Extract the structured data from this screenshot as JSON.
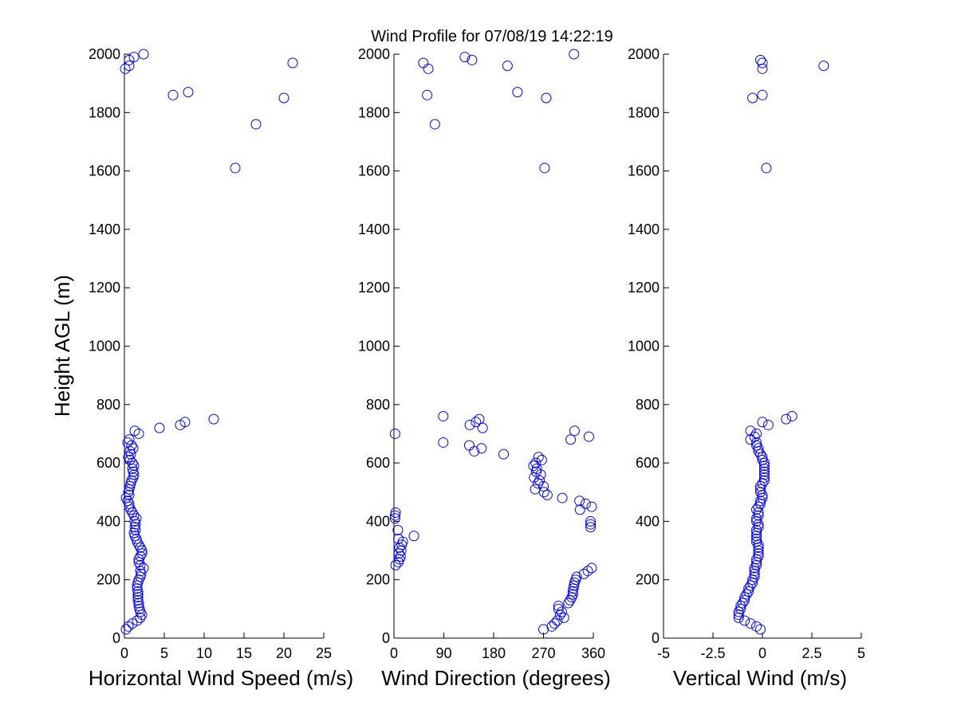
{
  "title": "Wind Profile for  07/08/19 14:22:19",
  "ylabel": "Height AGL (m)",
  "colors": {
    "marker": "#0000ff",
    "axis": "#000000"
  },
  "chart_data": [
    {
      "type": "scatter",
      "id": "speed",
      "xlabel": "Horizontal Wind Speed (m/s)",
      "ylabel": "Height AGL (m)",
      "xlim": [
        0,
        25
      ],
      "ylim": [
        0,
        2000
      ],
      "xticks": [
        0,
        5,
        10,
        15,
        20,
        25
      ],
      "xtick_labels": [
        "0",
        "5",
        "10",
        "15",
        "20",
        "25"
      ],
      "yticks": [
        0,
        200,
        400,
        600,
        800,
        1000,
        1200,
        1400,
        1600,
        1800,
        2000
      ],
      "ytick_labels": [
        "0",
        "200",
        "400",
        "600",
        "800",
        "1000",
        "1200",
        "1400",
        "1600",
        "1800",
        "2000"
      ],
      "marker": "open-circle",
      "points": [
        [
          0.2,
          30
        ],
        [
          0.5,
          40
        ],
        [
          1.0,
          50
        ],
        [
          1.6,
          60
        ],
        [
          2.0,
          70
        ],
        [
          2.2,
          80
        ],
        [
          2.0,
          90
        ],
        [
          1.9,
          100
        ],
        [
          1.8,
          110
        ],
        [
          1.8,
          120
        ],
        [
          1.7,
          130
        ],
        [
          1.7,
          140
        ],
        [
          1.7,
          150
        ],
        [
          1.7,
          160
        ],
        [
          1.6,
          170
        ],
        [
          1.6,
          180
        ],
        [
          1.7,
          190
        ],
        [
          1.8,
          200
        ],
        [
          2.0,
          210
        ],
        [
          2.1,
          220
        ],
        [
          2.0,
          230
        ],
        [
          2.4,
          240
        ],
        [
          2.0,
          250
        ],
        [
          1.8,
          260
        ],
        [
          1.8,
          270
        ],
        [
          2.0,
          280
        ],
        [
          2.2,
          290
        ],
        [
          2.2,
          300
        ],
        [
          2.0,
          310
        ],
        [
          1.8,
          320
        ],
        [
          1.6,
          330
        ],
        [
          1.5,
          340
        ],
        [
          1.3,
          350
        ],
        [
          1.2,
          360
        ],
        [
          1.4,
          370
        ],
        [
          1.3,
          380
        ],
        [
          1.4,
          390
        ],
        [
          1.3,
          400
        ],
        [
          1.5,
          410
        ],
        [
          1.2,
          420
        ],
        [
          1.0,
          430
        ],
        [
          0.8,
          440
        ],
        [
          0.6,
          450
        ],
        [
          0.6,
          460
        ],
        [
          0.4,
          470
        ],
        [
          0.2,
          480
        ],
        [
          0.6,
          490
        ],
        [
          0.5,
          500
        ],
        [
          0.6,
          510
        ],
        [
          0.7,
          520
        ],
        [
          0.8,
          530
        ],
        [
          0.9,
          540
        ],
        [
          1.1,
          550
        ],
        [
          1.2,
          560
        ],
        [
          1.1,
          570
        ],
        [
          1.0,
          580
        ],
        [
          1.2,
          590
        ],
        [
          1.0,
          600
        ],
        [
          0.7,
          610
        ],
        [
          0.5,
          620
        ],
        [
          0.8,
          630
        ],
        [
          0.7,
          640
        ],
        [
          1.1,
          650
        ],
        [
          0.9,
          660
        ],
        [
          0.4,
          670
        ],
        [
          0.6,
          680
        ],
        [
          1.8,
          700
        ],
        [
          1.3,
          710
        ],
        [
          4.4,
          720
        ],
        [
          7.0,
          730
        ],
        [
          7.6,
          740
        ],
        [
          11.2,
          750
        ],
        [
          13.9,
          1610
        ],
        [
          16.5,
          1760
        ],
        [
          20.0,
          1850
        ],
        [
          6.1,
          1860
        ],
        [
          8.0,
          1870
        ],
        [
          0.1,
          1950
        ],
        [
          0.6,
          1960
        ],
        [
          21.1,
          1970
        ],
        [
          0.6,
          1980
        ],
        [
          1.2,
          1990
        ],
        [
          2.4,
          2000
        ]
      ]
    },
    {
      "type": "scatter",
      "id": "direction",
      "xlabel": "Wind Direction (degrees)",
      "xlim": [
        0,
        360
      ],
      "ylim": [
        0,
        2000
      ],
      "xticks": [
        0,
        90,
        180,
        270,
        360
      ],
      "xtick_labels": [
        "0",
        "90",
        "180",
        "270",
        "360"
      ],
      "yticks": [
        0,
        200,
        400,
        600,
        800,
        1000,
        1200,
        1400,
        1600,
        1800,
        2000
      ],
      "ytick_labels": [
        "0",
        "200",
        "400",
        "600",
        "800",
        "1000",
        "1200",
        "1400",
        "1600",
        "1800",
        "2000"
      ],
      "marker": "open-circle",
      "points": [
        [
          270,
          30
        ],
        [
          285,
          40
        ],
        [
          290,
          50
        ],
        [
          295,
          60
        ],
        [
          307,
          70
        ],
        [
          300,
          80
        ],
        [
          303,
          90
        ],
        [
          297,
          100
        ],
        [
          297,
          110
        ],
        [
          315,
          120
        ],
        [
          318,
          130
        ],
        [
          321,
          140
        ],
        [
          323,
          150
        ],
        [
          323,
          160
        ],
        [
          324,
          170
        ],
        [
          325,
          180
        ],
        [
          326,
          190
        ],
        [
          328,
          200
        ],
        [
          330,
          210
        ],
        [
          343,
          220
        ],
        [
          350,
          230
        ],
        [
          357,
          240
        ],
        [
          3,
          250
        ],
        [
          8,
          260
        ],
        [
          10,
          270
        ],
        [
          12,
          280
        ],
        [
          9,
          290
        ],
        [
          13,
          300
        ],
        [
          10,
          310
        ],
        [
          14,
          320
        ],
        [
          16,
          330
        ],
        [
          8,
          340
        ],
        [
          36,
          350
        ],
        [
          7,
          370
        ],
        [
          355,
          380
        ],
        [
          355,
          390
        ],
        [
          355,
          400
        ],
        [
          2,
          410
        ],
        [
          2,
          420
        ],
        [
          3,
          430
        ],
        [
          336,
          440
        ],
        [
          357,
          450
        ],
        [
          346,
          460
        ],
        [
          335,
          470
        ],
        [
          304,
          480
        ],
        [
          277,
          490
        ],
        [
          271,
          500
        ],
        [
          255,
          510
        ],
        [
          270,
          520
        ],
        [
          260,
          530
        ],
        [
          263,
          540
        ],
        [
          253,
          550
        ],
        [
          265,
          560
        ],
        [
          257,
          570
        ],
        [
          258,
          580
        ],
        [
          252,
          590
        ],
        [
          256,
          600
        ],
        [
          267,
          610
        ],
        [
          261,
          620
        ],
        [
          198,
          630
        ],
        [
          145,
          640
        ],
        [
          158,
          650
        ],
        [
          136,
          660
        ],
        [
          89,
          670
        ],
        [
          319,
          680
        ],
        [
          352,
          690
        ],
        [
          2,
          700
        ],
        [
          326,
          710
        ],
        [
          160,
          720
        ],
        [
          137,
          730
        ],
        [
          148,
          740
        ],
        [
          154,
          750
        ],
        [
          89,
          760
        ],
        [
          272,
          1610
        ],
        [
          74,
          1760
        ],
        [
          275,
          1850
        ],
        [
          60,
          1860
        ],
        [
          223,
          1870
        ],
        [
          62,
          1950
        ],
        [
          205,
          1960
        ],
        [
          53,
          1970
        ],
        [
          141,
          1980
        ],
        [
          128,
          1990
        ],
        [
          325,
          2000
        ]
      ]
    },
    {
      "type": "scatter",
      "id": "vertical",
      "xlabel": "Vertical Wind (m/s)",
      "xlim": [
        -5,
        5
      ],
      "ylim": [
        0,
        2000
      ],
      "xticks": [
        -5,
        -2.5,
        0,
        2.5,
        5
      ],
      "xtick_labels": [
        "-5",
        "-2.5",
        "0",
        "2.5",
        "5"
      ],
      "yticks": [
        0,
        200,
        400,
        600,
        800,
        1000,
        1200,
        1400,
        1600,
        1800,
        2000
      ],
      "ytick_labels": [
        "0",
        "200",
        "400",
        "600",
        "800",
        "1000",
        "1200",
        "1400",
        "1600",
        "1800",
        "2000"
      ],
      "marker": "open-circle",
      "points": [
        [
          -0.1,
          30
        ],
        [
          -0.3,
          40
        ],
        [
          -0.6,
          50
        ],
        [
          -0.9,
          60
        ],
        [
          -1.2,
          70
        ],
        [
          -1.2,
          80
        ],
        [
          -1.2,
          90
        ],
        [
          -1.1,
          100
        ],
        [
          -1.1,
          110
        ],
        [
          -1.0,
          120
        ],
        [
          -0.9,
          130
        ],
        [
          -0.9,
          140
        ],
        [
          -0.8,
          150
        ],
        [
          -0.7,
          160
        ],
        [
          -0.7,
          170
        ],
        [
          -0.6,
          180
        ],
        [
          -0.5,
          190
        ],
        [
          -0.5,
          200
        ],
        [
          -0.4,
          210
        ],
        [
          -0.4,
          220
        ],
        [
          -0.4,
          230
        ],
        [
          -0.4,
          240
        ],
        [
          -0.3,
          250
        ],
        [
          -0.3,
          260
        ],
        [
          -0.3,
          270
        ],
        [
          -0.2,
          280
        ],
        [
          -0.2,
          290
        ],
        [
          -0.2,
          300
        ],
        [
          -0.2,
          310
        ],
        [
          -0.2,
          320
        ],
        [
          -0.3,
          330
        ],
        [
          -0.3,
          340
        ],
        [
          -0.3,
          350
        ],
        [
          -0.3,
          360
        ],
        [
          -0.3,
          370
        ],
        [
          -0.2,
          380
        ],
        [
          -0.2,
          390
        ],
        [
          -0.3,
          400
        ],
        [
          -0.3,
          410
        ],
        [
          -0.2,
          420
        ],
        [
          -0.2,
          430
        ],
        [
          -0.3,
          440
        ],
        [
          -0.2,
          450
        ],
        [
          -0.1,
          460
        ],
        [
          -0.1,
          470
        ],
        [
          0.0,
          480
        ],
        [
          0.0,
          490
        ],
        [
          -0.1,
          500
        ],
        [
          -0.1,
          510
        ],
        [
          -0.1,
          520
        ],
        [
          0.0,
          530
        ],
        [
          0.1,
          540
        ],
        [
          0.1,
          550
        ],
        [
          0.1,
          560
        ],
        [
          0.1,
          570
        ],
        [
          0.1,
          580
        ],
        [
          0.1,
          590
        ],
        [
          0.1,
          600
        ],
        [
          0.0,
          610
        ],
        [
          0.0,
          620
        ],
        [
          -0.1,
          630
        ],
        [
          -0.2,
          640
        ],
        [
          -0.2,
          650
        ],
        [
          -0.3,
          660
        ],
        [
          -0.3,
          670
        ],
        [
          -0.6,
          680
        ],
        [
          -0.4,
          690
        ],
        [
          -0.3,
          700
        ],
        [
          -0.6,
          710
        ],
        [
          0.3,
          730
        ],
        [
          0.0,
          740
        ],
        [
          1.2,
          750
        ],
        [
          1.5,
          760
        ],
        [
          0.2,
          1610
        ],
        [
          -0.5,
          1850
        ],
        [
          0.0,
          1860
        ],
        [
          0.0,
          1950
        ],
        [
          3.1,
          1960
        ],
        [
          0.0,
          1970
        ],
        [
          -0.1,
          1980
        ]
      ]
    }
  ]
}
